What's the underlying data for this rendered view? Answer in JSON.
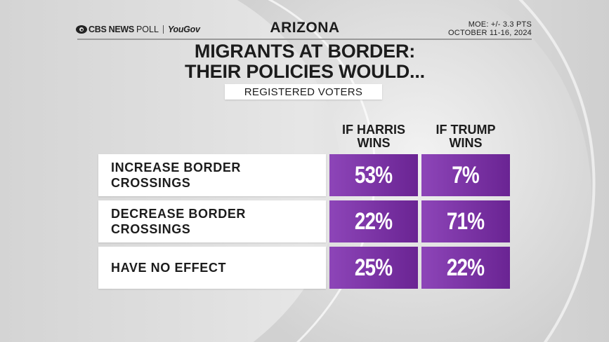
{
  "header": {
    "brand": "CBS NEWS",
    "brand_suffix": "POLL",
    "partner": "YouGov",
    "state": "ARIZONA",
    "moe": "MOE: +/- 3.3 PTS",
    "dates": "OCTOBER 11-16, 2024"
  },
  "colors": {
    "cell_purple_left": "#8d45b8",
    "cell_purple_right": "#6a2493",
    "text": "#1c1c1c",
    "background": "#dcdcdc"
  },
  "icons": [
    "cbs-eye-logo-icon"
  ],
  "chart_data": {
    "type": "table",
    "title": "MIGRANTS AT BORDER:\nTHEIR POLICIES WOULD...",
    "subtitle": "REGISTERED VOTERS",
    "columns": [
      "IF HARRIS\nWINS",
      "IF TRUMP\nWINS"
    ],
    "rows": [
      {
        "label": "INCREASE BORDER\nCROSSINGS",
        "values": [
          "53%",
          "7%"
        ]
      },
      {
        "label": "DECREASE BORDER\nCROSSINGS",
        "values": [
          "22%",
          "71%"
        ]
      },
      {
        "label": "HAVE NO EFFECT",
        "values": [
          "25%",
          "22%"
        ]
      }
    ]
  }
}
